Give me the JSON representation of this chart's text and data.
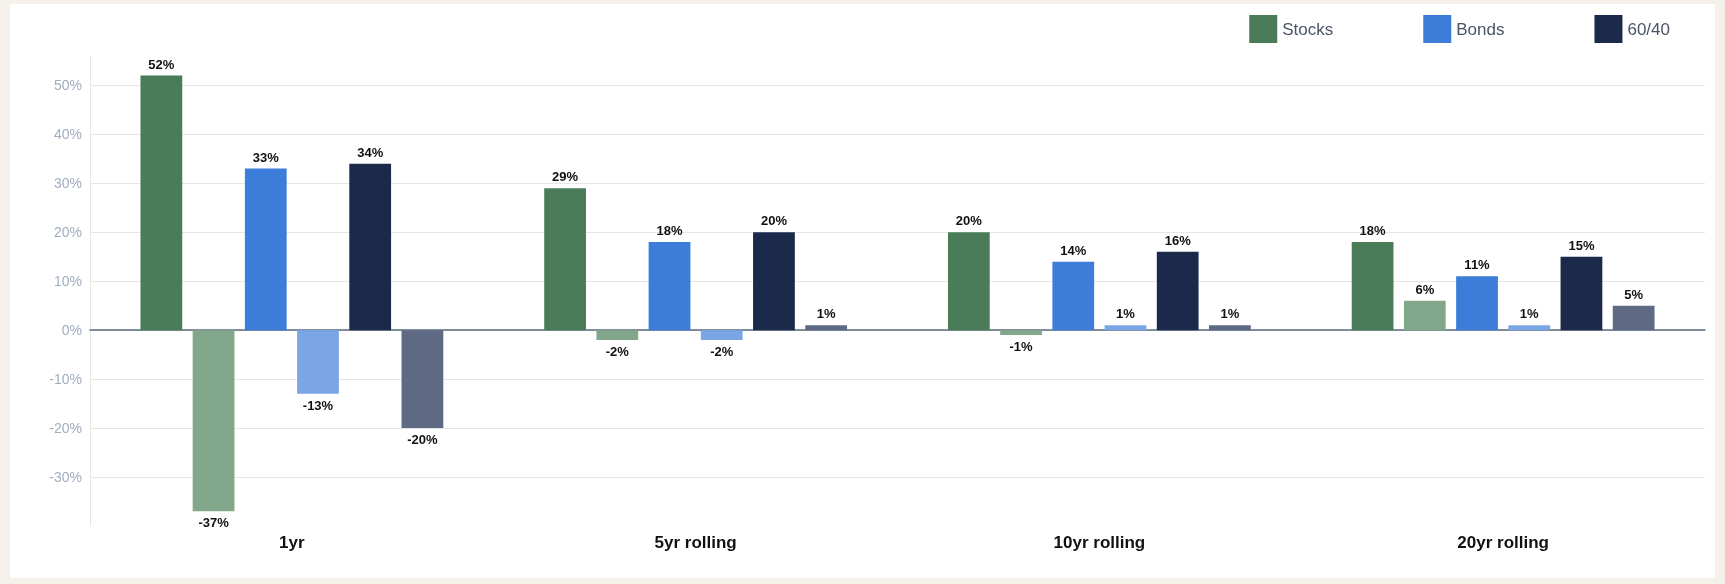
{
  "chart_data": {
    "type": "bar",
    "categories": [
      "1yr",
      "5yr rolling",
      "10yr rolling",
      "20yr rolling"
    ],
    "series": [
      {
        "name": "Stocks",
        "color": "#4a7c59",
        "values": [
          52,
          29,
          20,
          18
        ],
        "value_labels": [
          "52%",
          "29%",
          "20%",
          "18%"
        ]
      },
      {
        "color": "#82a78a",
        "values": [
          -37,
          -2,
          -1,
          6
        ],
        "value_labels": [
          "-37%",
          "-2%",
          "-1%",
          "6%"
        ]
      },
      {
        "name": "Bonds",
        "color": "#3b7dd8",
        "values": [
          33,
          18,
          14,
          11
        ],
        "value_labels": [
          "33%",
          "18%",
          "14%",
          "11%"
        ]
      },
      {
        "color": "#7aa6e6",
        "values": [
          -13,
          -2,
          1,
          1
        ],
        "value_labels": [
          "-13%",
          "-2%",
          "1%",
          "1%"
        ]
      },
      {
        "name": "60/40",
        "color": "#1b2a4a",
        "values": [
          34,
          20,
          16,
          15
        ],
        "value_labels": [
          "34%",
          "20%",
          "16%",
          "15%"
        ]
      },
      {
        "color": "#5e6a84",
        "values": [
          -20,
          1,
          1,
          5
        ],
        "value_labels": [
          "-20%",
          "1%",
          "1%",
          "5%"
        ]
      }
    ],
    "ylim": [
      -40,
      56
    ],
    "yticks": [
      {
        "value": -30,
        "label": "-30%"
      },
      {
        "value": -20,
        "label": "-20%"
      },
      {
        "value": -10,
        "label": "-10%"
      },
      {
        "value": 0,
        "label": "0%"
      },
      {
        "value": 10,
        "label": "10%"
      },
      {
        "value": 20,
        "label": "20%"
      },
      {
        "value": 30,
        "label": "30%"
      },
      {
        "value": 40,
        "label": "40%"
      },
      {
        "value": 50,
        "label": "50%"
      }
    ],
    "grid": "y",
    "legend": "top right"
  }
}
